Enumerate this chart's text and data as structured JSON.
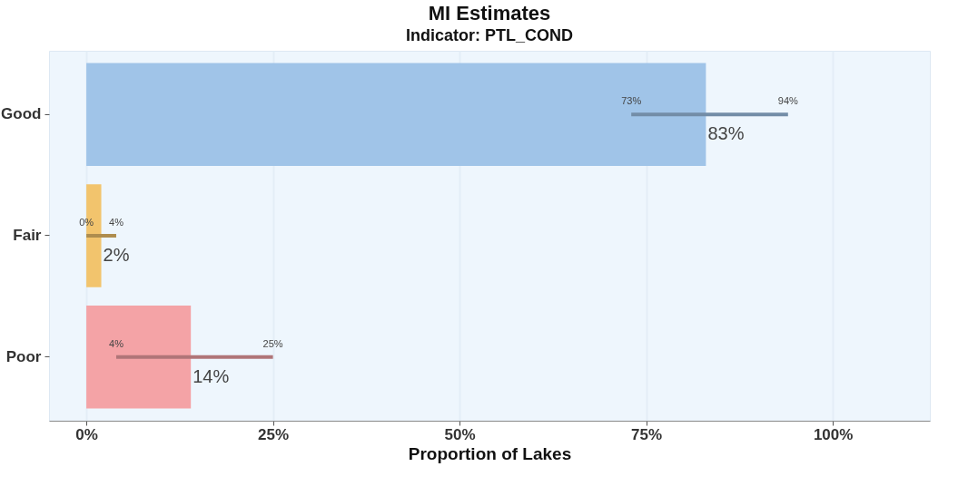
{
  "chart_data": {
    "type": "bar",
    "orientation": "horizontal",
    "title": "MI Estimates",
    "subtitle": "Indicator: PTL_COND",
    "xlabel": "Proportion of Lakes",
    "categories": [
      "Good",
      "Fair",
      "Poor"
    ],
    "values": [
      83,
      2,
      14
    ],
    "colors": [
      "#a0c4e8",
      "#f2c46d",
      "#f4a3a6"
    ],
    "errors": [
      [
        73,
        94
      ],
      [
        0,
        4
      ],
      [
        4,
        25
      ]
    ],
    "value_labels": [
      "83%",
      "2%",
      "14%"
    ],
    "annotations": [
      {
        "text": "73%",
        "x": 73,
        "y": "Good"
      },
      {
        "text": "94%",
        "x": 94,
        "y": "Good"
      },
      {
        "text": "0%",
        "x": 0,
        "y": "Fair"
      },
      {
        "text": "4%",
        "x": 4,
        "y": "Fair"
      },
      {
        "text": "4%",
        "x": 4,
        "y": "Poor"
      },
      {
        "text": "25%",
        "x": 25,
        "y": "Poor"
      }
    ],
    "xlim": [
      -5,
      113
    ],
    "xticks": [
      {
        "value": 0,
        "label": "0%"
      },
      {
        "value": 25,
        "label": "25%"
      },
      {
        "value": 50,
        "label": "50%"
      },
      {
        "value": 75,
        "label": "75%"
      },
      {
        "value": 100,
        "label": "100%"
      }
    ],
    "grid": "x",
    "legend": false
  }
}
